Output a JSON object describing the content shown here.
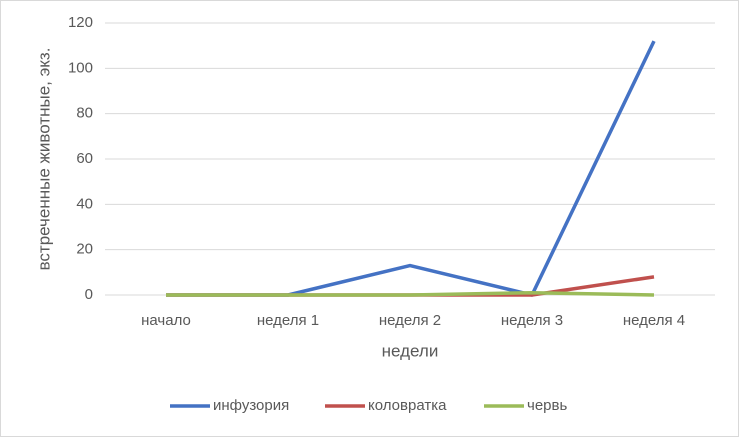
{
  "chart_data": {
    "type": "line",
    "categories": [
      "начало",
      "неделя 1",
      "неделя 2",
      "неделя 3",
      "неделя 4"
    ],
    "series": [
      {
        "name": "инфузория",
        "color": "#4472c4",
        "values": [
          0,
          0,
          13,
          0,
          112
        ]
      },
      {
        "name": "коловратка",
        "color": "#c0504d",
        "values": [
          0,
          0,
          0,
          0,
          8
        ]
      },
      {
        "name": "червь",
        "color": "#9bbb59",
        "values": [
          0,
          0,
          0,
          1,
          0
        ]
      }
    ],
    "x_label": "недели",
    "y_label": "встреченные животные, экз.",
    "ylim": [
      0,
      120
    ],
    "yticks": [
      0,
      20,
      40,
      60,
      80,
      100,
      120
    ],
    "grid": true,
    "legend": "bottom"
  }
}
